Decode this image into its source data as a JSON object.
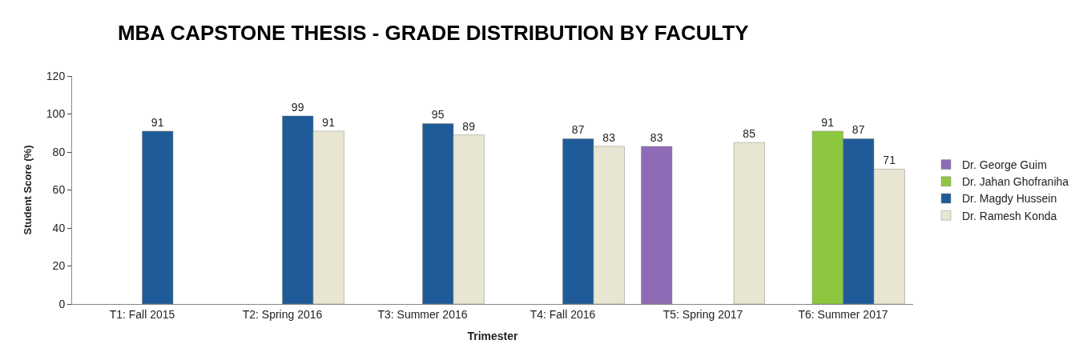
{
  "chart_data": {
    "type": "bar",
    "title": "MBA CAPSTONE THESIS - GRADE DISTRIBUTION BY FACULTY",
    "xlabel": "Trimester",
    "ylabel": "Student Score (%)",
    "categories": [
      "T1: Fall 2015",
      "T2: Spring 2016",
      "T3: Summer 2016",
      "T4: Fall 2016",
      "T5: Spring 2017",
      "T6: Summer 2017"
    ],
    "series": [
      {
        "name": "Dr. George Guim",
        "color": "#8e6bb5",
        "values": [
          null,
          null,
          null,
          null,
          83,
          null
        ]
      },
      {
        "name": "Dr. Jahan Ghofraniha",
        "color": "#8dc63f",
        "values": [
          null,
          null,
          null,
          null,
          null,
          91
        ]
      },
      {
        "name": "Dr. Magdy Hussein",
        "color": "#1f5b99",
        "values": [
          91,
          99,
          95,
          87,
          null,
          87
        ]
      },
      {
        "name": "Dr. Ramesh Konda",
        "color": "#e8e6d3",
        "values": [
          null,
          91,
          89,
          83,
          85,
          71
        ]
      }
    ],
    "ylim": [
      0,
      120
    ],
    "yticks": [
      0,
      20,
      40,
      60,
      80,
      100,
      120
    ],
    "data_labels": true,
    "legend": "right"
  }
}
